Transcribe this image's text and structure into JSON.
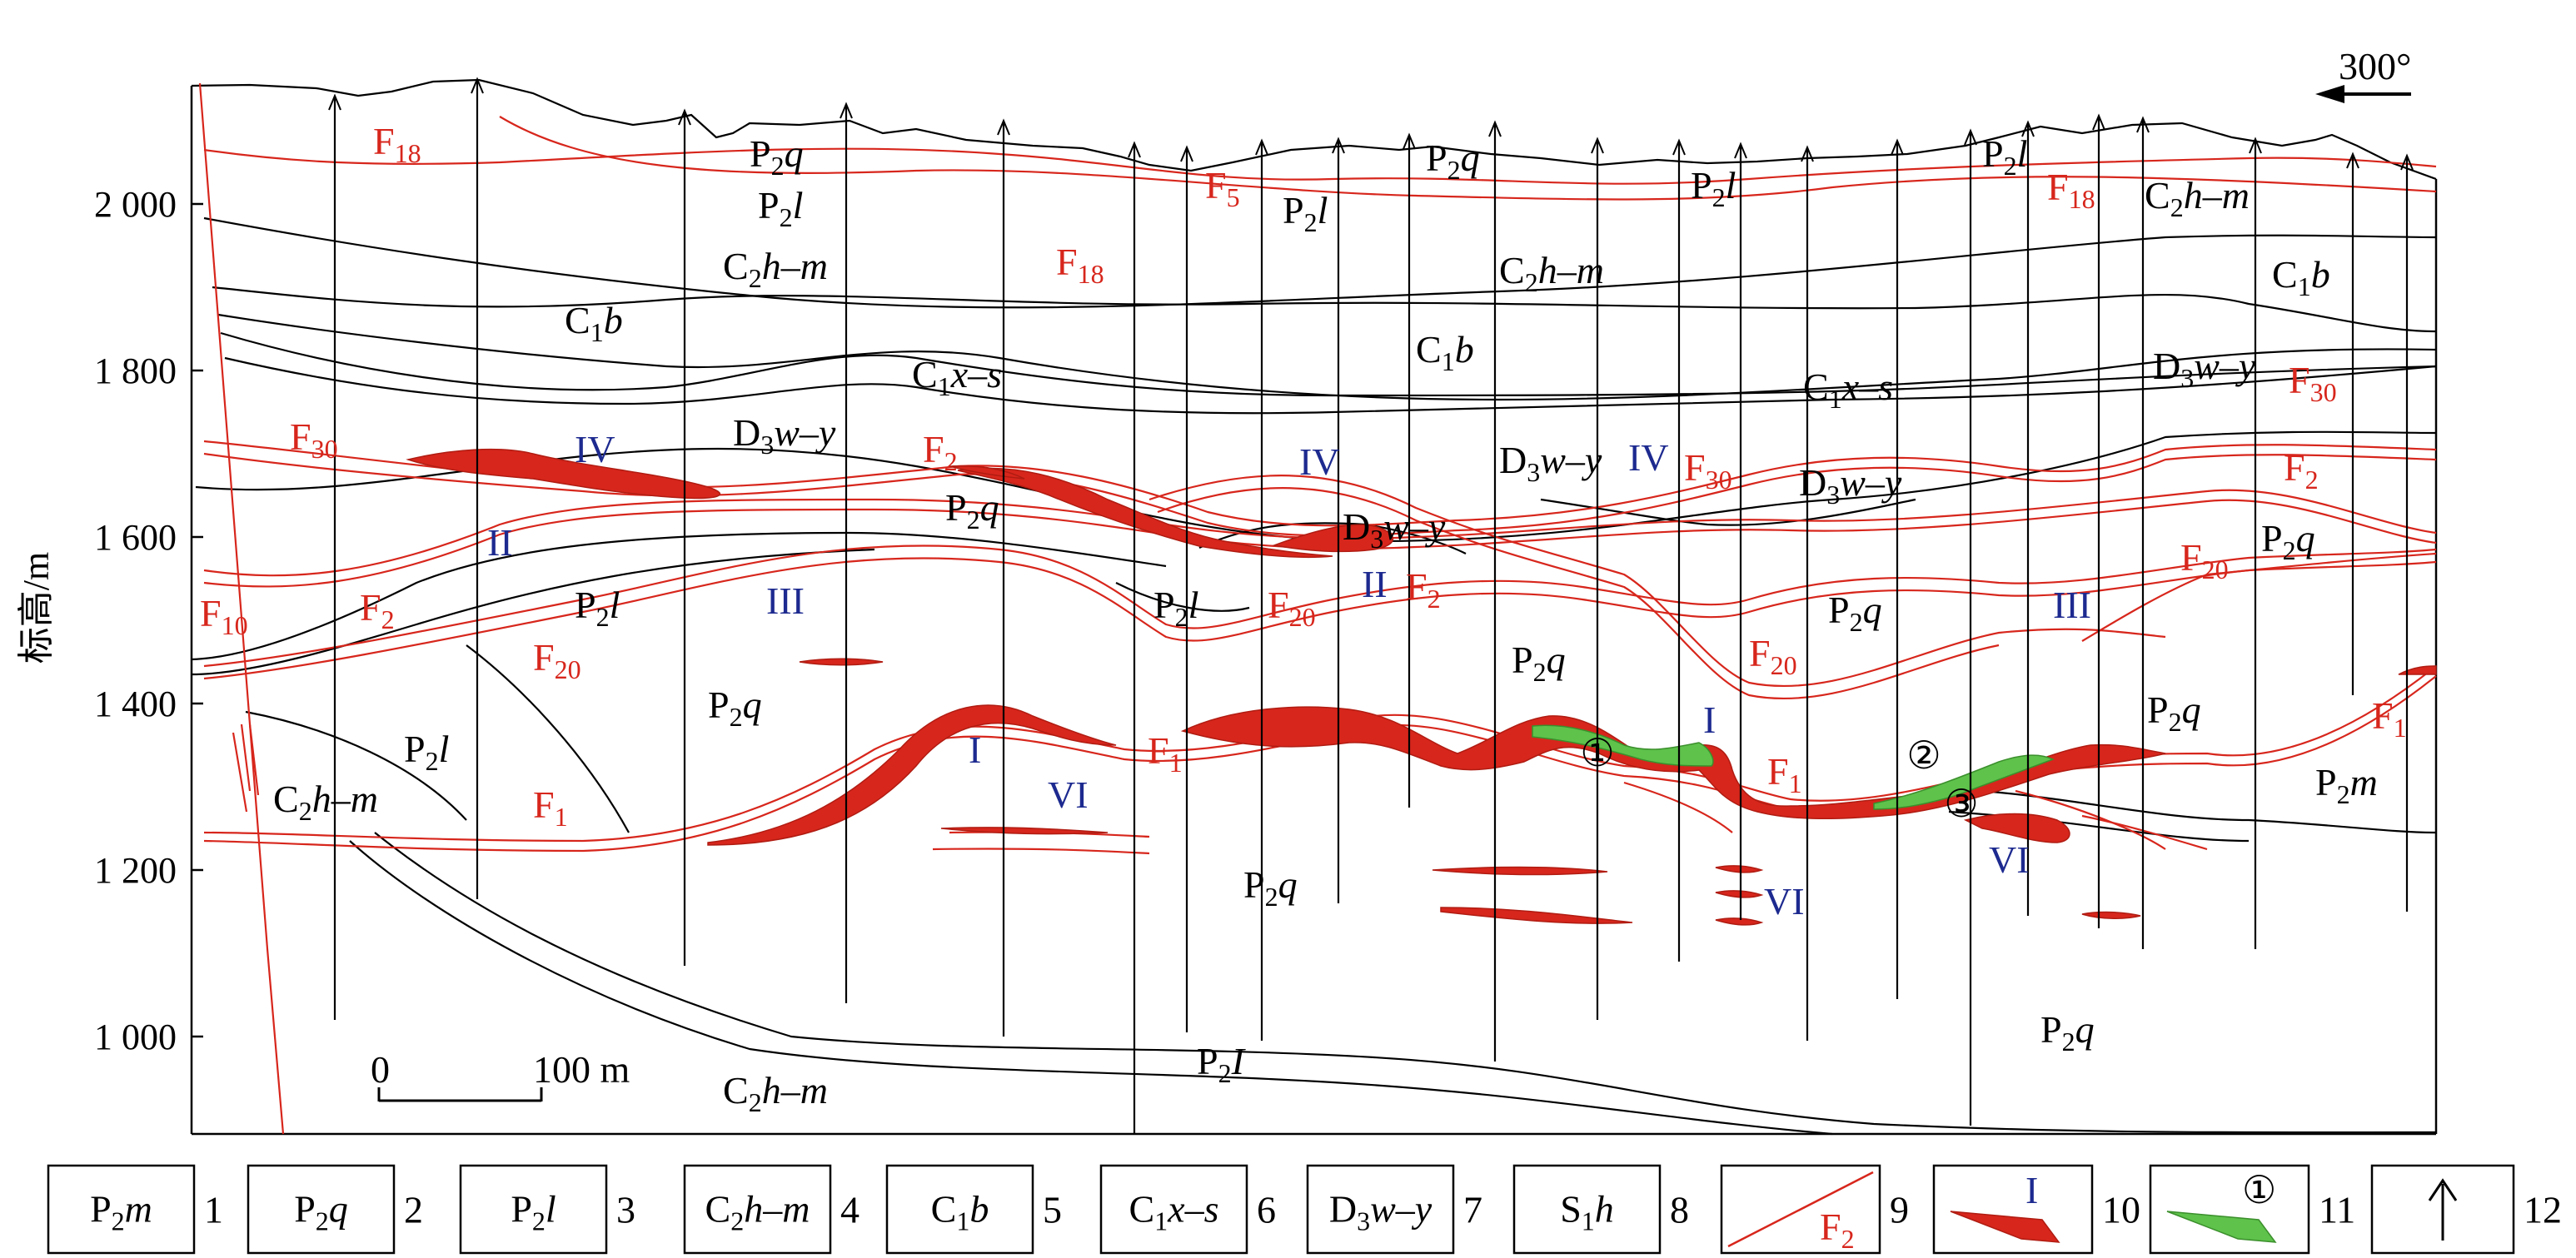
{
  "direction": {
    "label": "300°"
  },
  "yaxis": {
    "title": "标高/m",
    "ticks": [
      {
        "value": 1000,
        "label": "1 000"
      },
      {
        "value": 1200,
        "label": "1 200"
      },
      {
        "value": 1400,
        "label": "1 400"
      },
      {
        "value": 1600,
        "label": "1 600"
      },
      {
        "value": 1800,
        "label": "1 800"
      },
      {
        "value": 2000,
        "label": "2 000"
      }
    ]
  },
  "scale": {
    "start": "0",
    "end": "100 m"
  },
  "fault_labels": [
    {
      "text": "F18",
      "base": "F",
      "sub": "18"
    },
    {
      "text": "F5",
      "base": "F",
      "sub": "5"
    },
    {
      "text": "F18",
      "base": "F",
      "sub": "18"
    },
    {
      "text": "F18",
      "base": "F",
      "sub": "18"
    },
    {
      "text": "F30",
      "base": "F",
      "sub": "30"
    },
    {
      "text": "F2",
      "base": "F",
      "sub": "2"
    },
    {
      "text": "F30",
      "base": "F",
      "sub": "30"
    },
    {
      "text": "F30",
      "base": "F",
      "sub": "30"
    },
    {
      "text": "F2",
      "base": "F",
      "sub": "2"
    },
    {
      "text": "F10",
      "base": "F",
      "sub": "10"
    },
    {
      "text": "F2",
      "base": "F",
      "sub": "2"
    },
    {
      "text": "F20",
      "base": "F",
      "sub": "20"
    },
    {
      "text": "F20",
      "base": "F",
      "sub": "20"
    },
    {
      "text": "F2",
      "base": "F",
      "sub": "2"
    },
    {
      "text": "F20",
      "base": "F",
      "sub": "20"
    },
    {
      "text": "F20",
      "base": "F",
      "sub": "20"
    },
    {
      "text": "F1",
      "base": "F",
      "sub": "1"
    },
    {
      "text": "F1",
      "base": "F",
      "sub": "1"
    },
    {
      "text": "F1",
      "base": "F",
      "sub": "1"
    },
    {
      "text": "F1",
      "base": "F",
      "sub": "1"
    }
  ],
  "strata_labels": [
    {
      "text": "P2q",
      "base": "P",
      "sub": "2",
      "it": "q"
    },
    {
      "text": "P2q",
      "base": "P",
      "sub": "2",
      "it": "q"
    },
    {
      "text": "P2l",
      "base": "P",
      "sub": "2",
      "it": "l"
    },
    {
      "text": "P2l",
      "base": "P",
      "sub": "2",
      "it": "l"
    },
    {
      "text": "P2l",
      "base": "P",
      "sub": "2",
      "it": "l"
    },
    {
      "text": "P2l",
      "base": "P",
      "sub": "2",
      "it": "l"
    },
    {
      "text": "C2h–m",
      "base": "C",
      "sub": "2",
      "it": "h–m"
    },
    {
      "text": "C2h–m",
      "base": "C",
      "sub": "2",
      "it": "h–m"
    },
    {
      "text": "C2h–m",
      "base": "C",
      "sub": "2",
      "it": "h–m"
    },
    {
      "text": "C1b",
      "base": "C",
      "sub": "1",
      "it": "b"
    },
    {
      "text": "C1b",
      "base": "C",
      "sub": "1",
      "it": "b"
    },
    {
      "text": "C1b",
      "base": "C",
      "sub": "1",
      "it": "b"
    },
    {
      "text": "C1x–s",
      "base": "C",
      "sub": "1",
      "it": "x–s"
    },
    {
      "text": "C1x–s",
      "base": "C",
      "sub": "1",
      "it": "x–s"
    },
    {
      "text": "D3w–y",
      "base": "D",
      "sub": "3",
      "it": "w–y"
    },
    {
      "text": "D3w–y",
      "base": "D",
      "sub": "3",
      "it": "w–y"
    },
    {
      "text": "D3w–y",
      "base": "D",
      "sub": "3",
      "it": "w–y"
    },
    {
      "text": "D3w–y",
      "base": "D",
      "sub": "3",
      "it": "w–y"
    },
    {
      "text": "D3w–y",
      "base": "D",
      "sub": "3",
      "it": "w–y"
    },
    {
      "text": "P2q",
      "base": "P",
      "sub": "2",
      "it": "q"
    },
    {
      "text": "P2q",
      "base": "P",
      "sub": "2",
      "it": "q"
    },
    {
      "text": "P2l",
      "base": "P",
      "sub": "2",
      "it": "l"
    },
    {
      "text": "P2l",
      "base": "P",
      "sub": "2",
      "it": "l"
    },
    {
      "text": "P2q",
      "base": "P",
      "sub": "2",
      "it": "q"
    },
    {
      "text": "P2q",
      "base": "P",
      "sub": "2",
      "it": "q"
    },
    {
      "text": "P2q",
      "base": "P",
      "sub": "2",
      "it": "q"
    },
    {
      "text": "P2l",
      "base": "P",
      "sub": "2",
      "it": "l"
    },
    {
      "text": "C2h–m",
      "base": "C",
      "sub": "2",
      "it": "h–m"
    },
    {
      "text": "P2q",
      "base": "P",
      "sub": "2",
      "it": "q"
    },
    {
      "text": "P2q",
      "base": "P",
      "sub": "2",
      "it": "q"
    },
    {
      "text": "P2m",
      "base": "P",
      "sub": "2",
      "it": "m"
    },
    {
      "text": "P2q",
      "base": "P",
      "sub": "2",
      "it": "q"
    },
    {
      "text": "P2I",
      "base": "P",
      "sub": "2",
      "it": "I"
    },
    {
      "text": "C2h–m",
      "base": "C",
      "sub": "2",
      "it": "h–m"
    }
  ],
  "orebody_labels": [
    "IV",
    "IV",
    "IV",
    "II",
    "II",
    "III",
    "III",
    "I",
    "I",
    "VI",
    "VI",
    "VI"
  ],
  "circled_labels": [
    "①",
    "②",
    "③"
  ],
  "legend": [
    {
      "num": "1",
      "label": {
        "base": "P",
        "sub": "2",
        "it": "m"
      }
    },
    {
      "num": "2",
      "label": {
        "base": "P",
        "sub": "2",
        "it": "q"
      }
    },
    {
      "num": "3",
      "label": {
        "base": "P",
        "sub": "2",
        "it": "l"
      }
    },
    {
      "num": "4",
      "label": {
        "base": "C",
        "sub": "2",
        "it": "h–m"
      }
    },
    {
      "num": "5",
      "label": {
        "base": "C",
        "sub": "1",
        "it": "b"
      }
    },
    {
      "num": "6",
      "label": {
        "base": "C",
        "sub": "1",
        "it": "x–s"
      }
    },
    {
      "num": "7",
      "label": {
        "base": "D",
        "sub": "3",
        "it": "w–y"
      }
    },
    {
      "num": "8",
      "label": {
        "base": "S",
        "sub": "1",
        "it": "h"
      }
    },
    {
      "num": "9",
      "fault": {
        "base": "F",
        "sub": "2"
      }
    },
    {
      "num": "10",
      "ore": "I"
    },
    {
      "num": "11",
      "ore": "①"
    },
    {
      "num": "12",
      "symbol": "arrow-up"
    }
  ]
}
